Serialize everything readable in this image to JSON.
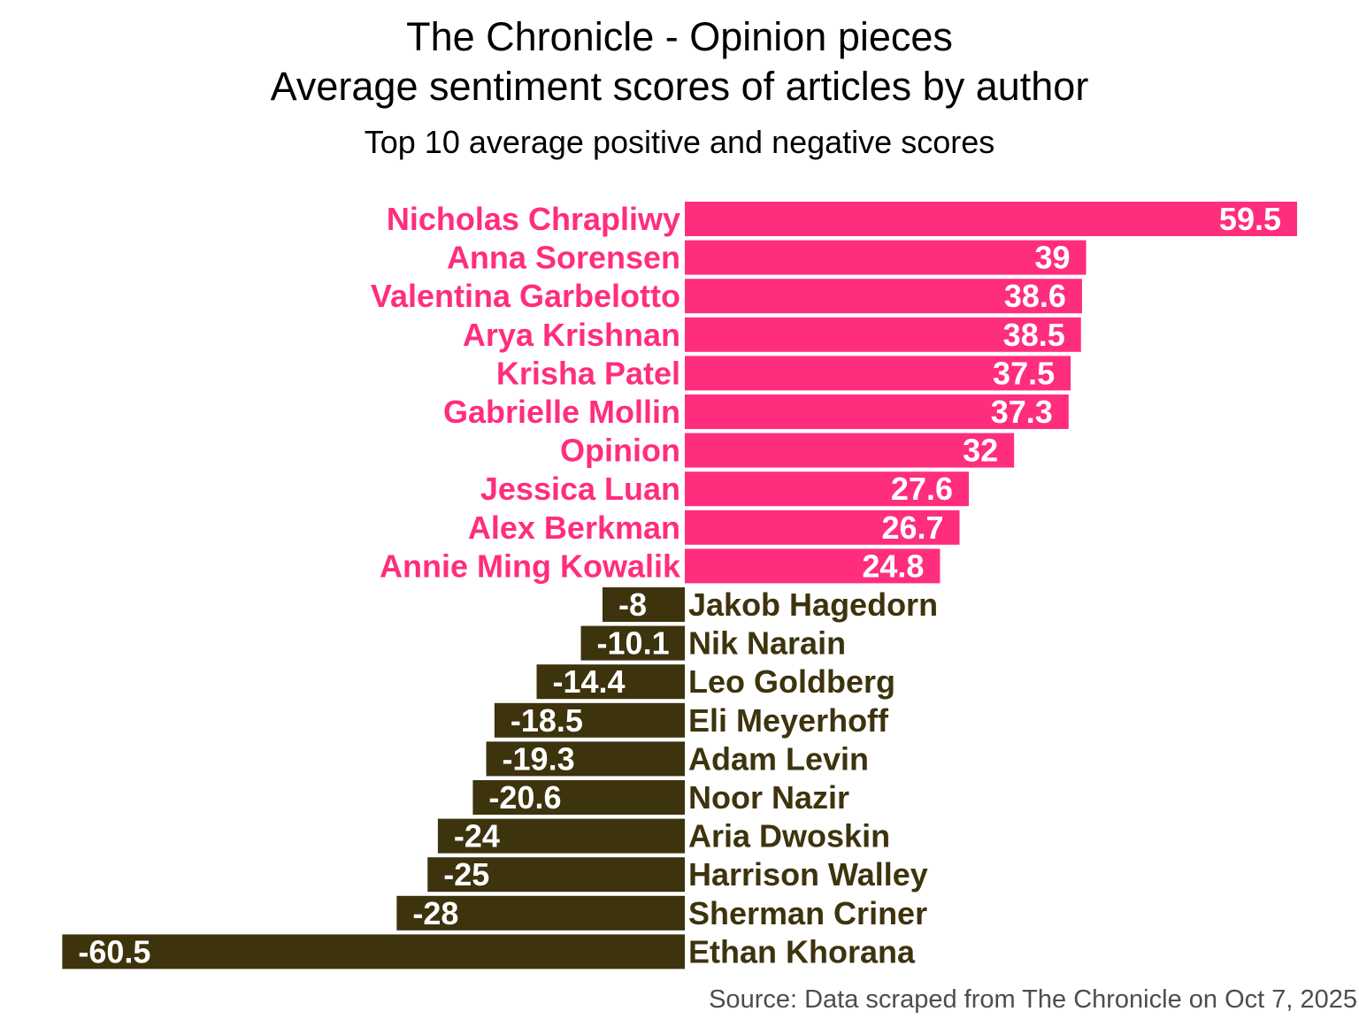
{
  "title_line1": "The Chronicle - Opinion pieces",
  "title_line2": "Average sentiment scores of articles by author",
  "subtitle": "Top 10 average positive and negative scores",
  "source": "Source: Data scraped from The Chronicle on Oct 7, 2025",
  "colors": {
    "positive": "#ff2d7e",
    "negative": "#3d330d",
    "value_label": "#ffffff"
  },
  "chart_data": {
    "type": "bar",
    "orientation": "horizontal",
    "title": "The Chronicle - Opinion pieces\nAverage sentiment scores of articles by author",
    "subtitle": "Top 10 average positive and negative scores",
    "xlabel": "",
    "ylabel": "",
    "grid": false,
    "legend": "none",
    "categories": [
      "Nicholas Chrapliwy",
      "Anna Sorensen",
      "Valentina Garbelotto",
      "Arya Krishnan",
      "Krisha Patel",
      "Gabrielle Mollin",
      "Opinion",
      "Jessica Luan",
      "Alex Berkman",
      "Annie Ming Kowalik",
      "Jakob Hagedorn",
      "Nik Narain",
      "Leo Goldberg",
      "Eli Meyerhoff",
      "Adam Levin",
      "Noor Nazir",
      "Aria Dwoskin",
      "Harrison Walley",
      "Sherman Criner",
      "Ethan Khorana"
    ],
    "values": [
      59.5,
      39,
      38.6,
      38.5,
      37.5,
      37.3,
      32,
      27.6,
      26.7,
      24.8,
      -8,
      -10.1,
      -14.4,
      -18.5,
      -19.3,
      -20.6,
      -24,
      -25,
      -28,
      -60.5
    ],
    "value_labels": [
      "59.5",
      "39",
      "38.6",
      "38.5",
      "37.5",
      "37.3",
      "32",
      "27.6",
      "26.7",
      "24.8",
      "-8",
      "-10.1",
      "-14.4",
      "-18.5",
      "-19.3",
      "-20.6",
      "-24",
      "-25",
      "-28",
      "-60.5"
    ],
    "xlim": [
      -60.5,
      59.5
    ]
  }
}
